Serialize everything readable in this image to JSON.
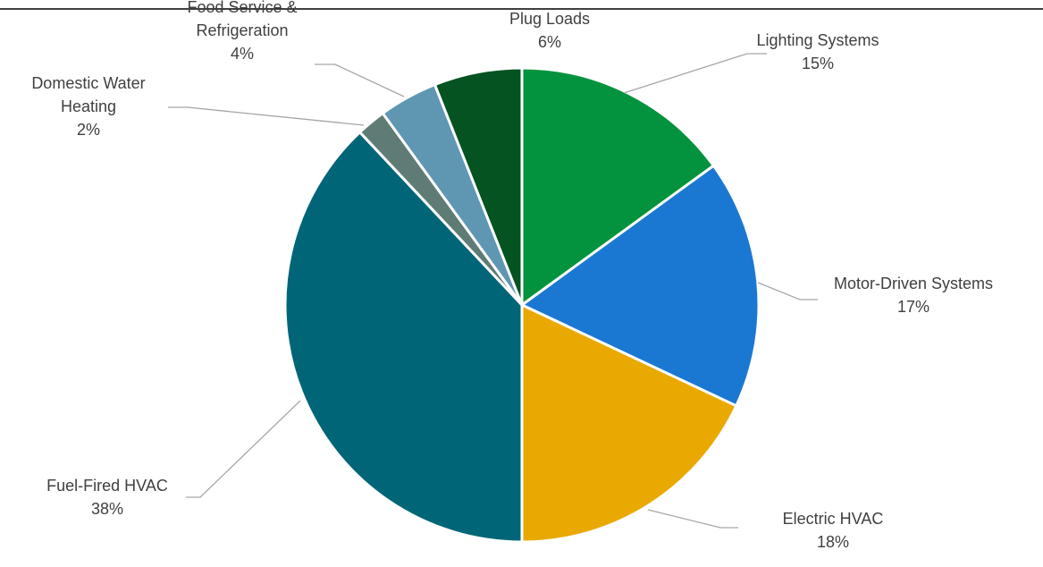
{
  "chart_data": {
    "type": "pie",
    "title": "",
    "slices": [
      {
        "name": [
          "Lighting Systems"
        ],
        "label": "Lighting Systems",
        "percent_label": "15%",
        "value": 15,
        "color": "#03923d"
      },
      {
        "name": [
          "Motor-Driven Systems"
        ],
        "label": "Motor-Driven Systems",
        "percent_label": "17%",
        "value": 17,
        "color": "#1a78d2"
      },
      {
        "name": [
          "Electric HVAC"
        ],
        "label": "Electric HVAC",
        "percent_label": "18%",
        "value": 18,
        "color": "#e9a900"
      },
      {
        "name": [
          "Fuel-Fired HVAC"
        ],
        "label": "Fuel-Fired HVAC",
        "percent_label": "38%",
        "value": 38,
        "color": "#006677"
      },
      {
        "name": [
          "Domestic Water",
          "Heating"
        ],
        "label": "Domestic Water Heating",
        "percent_label": "2%",
        "value": 2,
        "color": "#5e7c75"
      },
      {
        "name": [
          "Food Service &",
          "Refrigeration"
        ],
        "label": "Food Service & Refrigeration",
        "percent_label": "4%",
        "value": 4,
        "color": "#5f97b2"
      },
      {
        "name": [
          "Plug Loads"
        ],
        "label": "Plug Loads",
        "percent_label": "6%",
        "value": 6,
        "color": "#045321"
      }
    ]
  }
}
